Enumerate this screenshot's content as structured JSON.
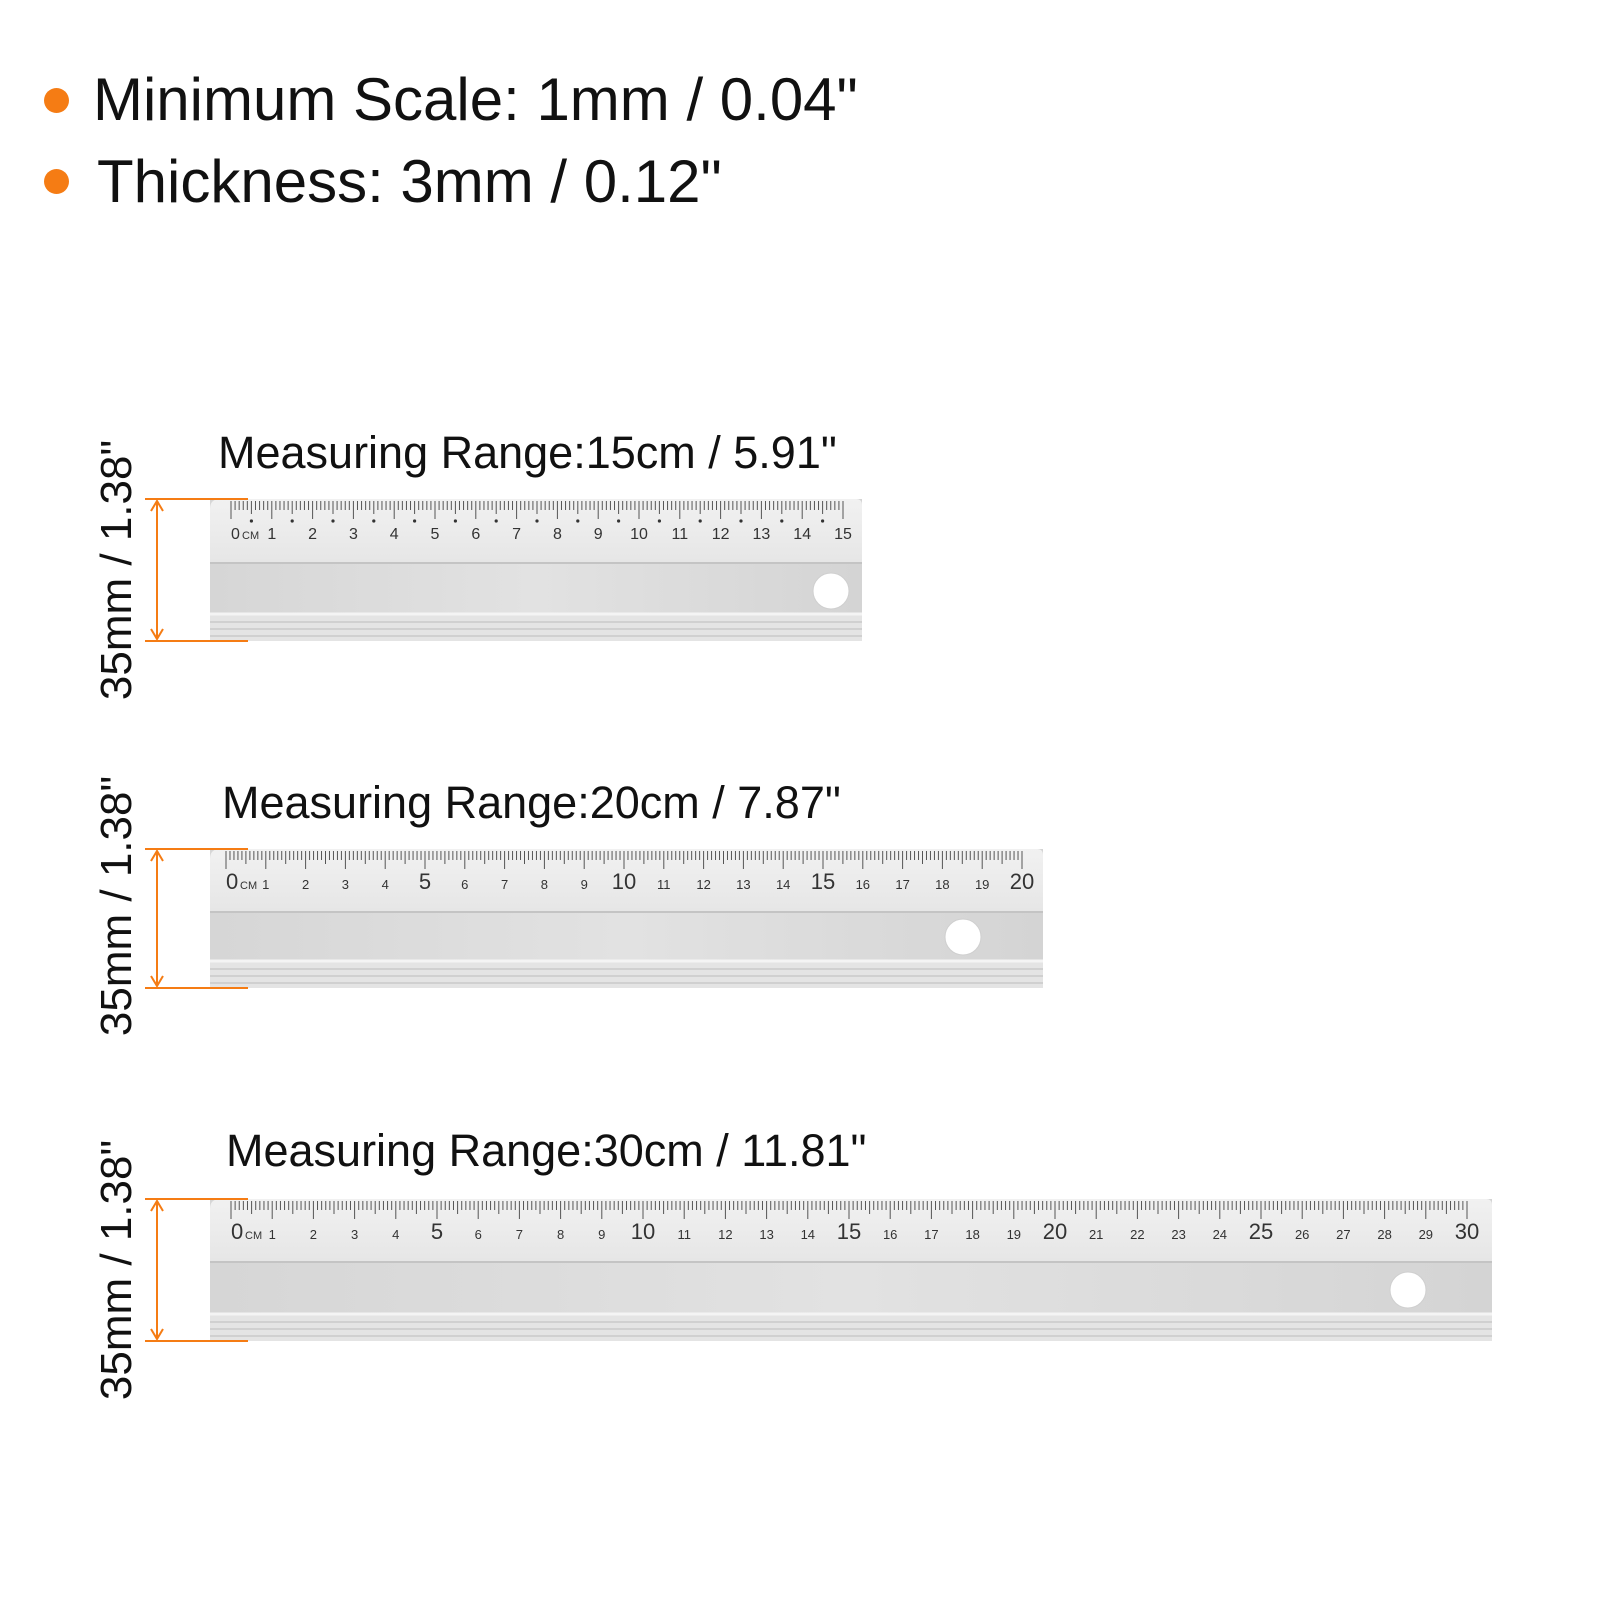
{
  "accent_color": "#f57c14",
  "specs": [
    {
      "text": "Minimum Scale: 1mm / 0.04\""
    },
    {
      "text": "Thickness: 3mm / 0.12\""
    }
  ],
  "rulers": [
    {
      "title": "Measuring Range:15cm / 5.91\"",
      "height_label": "35mm / 1.38\"",
      "scale_max_cm": 15,
      "unit": "CM",
      "emphasized_every": 0
    },
    {
      "title": "Measuring Range:20cm / 7.87\"",
      "height_label": "35mm / 1.38\"",
      "scale_max_cm": 20,
      "unit": "CM",
      "emphasized_every": 5
    },
    {
      "title": "Measuring Range:30cm / 11.81\"",
      "height_label": "35mm / 1.38\"",
      "scale_max_cm": 30,
      "unit": "CM",
      "emphasized_every": 5
    }
  ]
}
